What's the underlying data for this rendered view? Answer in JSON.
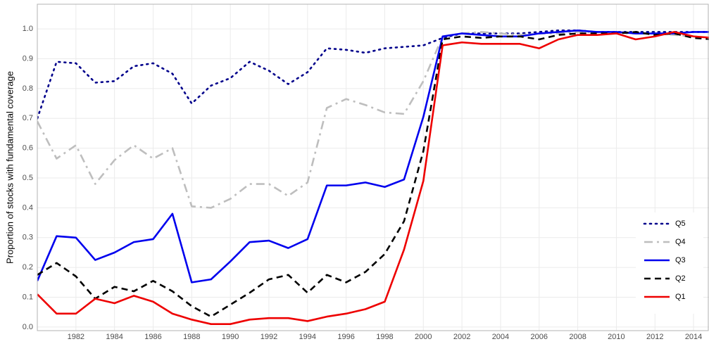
{
  "chart_data": {
    "type": "line",
    "ylabel": "Proportion of stocks with fundamental coverage",
    "x": [
      1980,
      1981,
      1982,
      1983,
      1984,
      1985,
      1986,
      1987,
      1988,
      1989,
      1990,
      1991,
      1992,
      1993,
      1994,
      1995,
      1996,
      1997,
      1998,
      1999,
      2000,
      2001,
      2002,
      2003,
      2004,
      2005,
      2006,
      2007,
      2008,
      2009,
      2010,
      2011,
      2012,
      2013,
      2014,
      2015
    ],
    "xlim": [
      1980,
      2014.8
    ],
    "xticks": [
      1982,
      1984,
      1986,
      1988,
      1990,
      1992,
      1994,
      1996,
      1998,
      2000,
      2002,
      2004,
      2006,
      2008,
      2010,
      2012,
      2014
    ],
    "ylim": [
      -0.012,
      1.083
    ],
    "yticks": [
      {
        "value": 0,
        "label": "0.0"
      },
      0.1,
      0.2,
      0.3,
      0.4,
      0.5,
      0.6,
      0.7,
      0.8,
      0.9,
      {
        "value": 1,
        "label": "1.0"
      }
    ],
    "grid": true,
    "legend": "bottom-right",
    "series": [
      {
        "name": "Q5",
        "color": "#00008b",
        "linestyle": "dotted",
        "values": [
          0.7,
          0.89,
          0.885,
          0.82,
          0.825,
          0.875,
          0.885,
          0.85,
          0.75,
          0.81,
          0.835,
          0.89,
          0.86,
          0.815,
          0.855,
          0.935,
          0.93,
          0.92,
          0.935,
          0.94,
          0.945,
          0.97,
          0.985,
          0.985,
          0.985,
          0.985,
          0.99,
          0.995,
          0.995,
          0.99,
          0.99,
          0.99,
          0.99,
          0.99,
          0.99,
          0.99
        ]
      },
      {
        "name": "Q4",
        "color": "#bebebe",
        "linestyle": "dashdot",
        "values": [
          0.69,
          0.565,
          0.61,
          0.48,
          0.56,
          0.61,
          0.565,
          0.6,
          0.405,
          0.4,
          0.43,
          0.48,
          0.48,
          0.44,
          0.485,
          0.735,
          0.765,
          0.745,
          0.72,
          0.715,
          0.825,
          0.975,
          0.985,
          0.99,
          0.985,
          0.98,
          0.985,
          0.985,
          0.99,
          0.99,
          0.985,
          0.985,
          0.985,
          0.98,
          0.975,
          0.97
        ]
      },
      {
        "name": "Q3",
        "color": "#0000ee",
        "linestyle": "solid",
        "values": [
          0.155,
          0.305,
          0.3,
          0.225,
          0.25,
          0.285,
          0.295,
          0.38,
          0.15,
          0.16,
          0.22,
          0.285,
          0.29,
          0.265,
          0.295,
          0.475,
          0.475,
          0.485,
          0.47,
          0.495,
          0.705,
          0.975,
          0.985,
          0.98,
          0.975,
          0.975,
          0.985,
          0.99,
          0.995,
          0.99,
          0.99,
          0.985,
          0.985,
          0.985,
          0.99,
          0.99
        ]
      },
      {
        "name": "Q2",
        "color": "#000000",
        "linestyle": "dashed",
        "values": [
          0.175,
          0.215,
          0.17,
          0.095,
          0.135,
          0.12,
          0.155,
          0.12,
          0.07,
          0.035,
          0.075,
          0.115,
          0.16,
          0.175,
          0.115,
          0.175,
          0.15,
          0.185,
          0.245,
          0.355,
          0.59,
          0.965,
          0.975,
          0.97,
          0.975,
          0.975,
          0.965,
          0.98,
          0.985,
          0.985,
          0.985,
          0.99,
          0.98,
          0.985,
          0.97,
          0.965
        ]
      },
      {
        "name": "Q1",
        "color": "#ee0000",
        "linestyle": "solid",
        "values": [
          0.11,
          0.045,
          0.045,
          0.095,
          0.08,
          0.105,
          0.085,
          0.045,
          0.025,
          0.01,
          0.01,
          0.025,
          0.03,
          0.03,
          0.02,
          0.035,
          0.045,
          0.06,
          0.085,
          0.26,
          0.49,
          0.945,
          0.955,
          0.95,
          0.95,
          0.95,
          0.935,
          0.965,
          0.98,
          0.98,
          0.985,
          0.965,
          0.975,
          0.99,
          0.975,
          0.97
        ]
      }
    ]
  }
}
